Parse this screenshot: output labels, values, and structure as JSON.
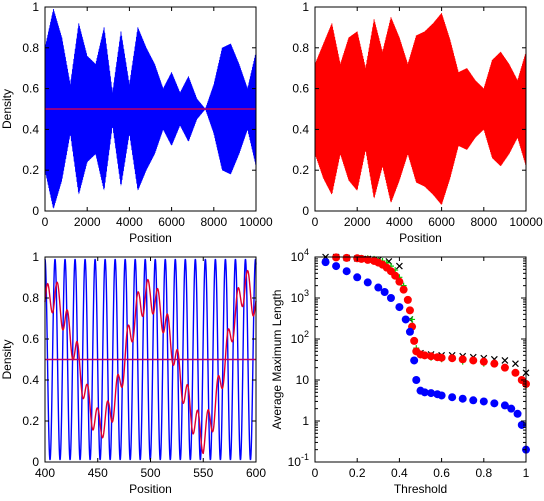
{
  "chart_data": [
    {
      "panel": "top-left",
      "type": "area",
      "xlabel": "Position",
      "ylabel": "Density",
      "xlim": [
        0,
        10000
      ],
      "ylim": [
        0,
        1
      ],
      "xticks": [
        "0",
        "2000",
        "4000",
        "6000",
        "8000",
        "10000"
      ],
      "yticks": [
        "0",
        "0.2",
        "0.4",
        "0.6",
        "0.8",
        "1"
      ],
      "colors": {
        "fill": "#0000ff",
        "line": "#c00060"
      },
      "series": [
        {
          "style": "oscillation-envelope",
          "x": [
            0,
            400,
            800,
            1200,
            1600,
            2000,
            2400,
            2800,
            3200,
            3600,
            4000,
            4400,
            4800,
            5200,
            5600,
            6000,
            6400,
            6800,
            7200,
            7600,
            8000,
            8400,
            8800,
            9200,
            9600,
            10000
          ],
          "upper": [
            0.8,
            0.99,
            0.85,
            0.62,
            0.92,
            0.76,
            0.72,
            0.9,
            0.58,
            0.88,
            0.62,
            0.9,
            0.8,
            0.72,
            0.6,
            0.68,
            0.58,
            0.66,
            0.55,
            0.5,
            0.62,
            0.8,
            0.82,
            0.72,
            0.6,
            0.78
          ],
          "lower": [
            0.2,
            0.01,
            0.15,
            0.38,
            0.08,
            0.24,
            0.28,
            0.1,
            0.42,
            0.12,
            0.38,
            0.1,
            0.2,
            0.28,
            0.4,
            0.32,
            0.42,
            0.34,
            0.45,
            0.5,
            0.38,
            0.2,
            0.18,
            0.28,
            0.4,
            0.22
          ]
        },
        {
          "style": "hline",
          "y": 0.5
        }
      ]
    },
    {
      "panel": "top-right",
      "type": "area",
      "xlabel": "Position",
      "ylabel": "",
      "xlim": [
        0,
        10000
      ],
      "ylim": [
        0,
        1
      ],
      "xticks": [
        "0",
        "2000",
        "4000",
        "6000",
        "8000",
        "10000"
      ],
      "yticks": [
        "0",
        "0.2",
        "0.4",
        "0.6",
        "0.8",
        "1"
      ],
      "colors": {
        "fill": "#ff0000"
      },
      "series": [
        {
          "style": "oscillation-envelope",
          "x": [
            0,
            400,
            800,
            1200,
            1600,
            2000,
            2400,
            2800,
            3200,
            3600,
            4000,
            4400,
            4800,
            5200,
            5600,
            6000,
            6400,
            6800,
            7200,
            7600,
            8000,
            8400,
            8800,
            9200,
            9600,
            10000
          ],
          "upper": [
            0.72,
            0.82,
            0.92,
            0.72,
            0.85,
            0.88,
            0.7,
            0.94,
            0.78,
            0.95,
            0.85,
            0.72,
            0.86,
            0.88,
            0.92,
            0.97,
            0.84,
            0.68,
            0.7,
            0.64,
            0.6,
            0.74,
            0.78,
            0.72,
            0.64,
            0.78
          ],
          "lower": [
            0.28,
            0.16,
            0.08,
            0.28,
            0.15,
            0.1,
            0.3,
            0.06,
            0.22,
            0.04,
            0.15,
            0.28,
            0.14,
            0.12,
            0.08,
            0.03,
            0.16,
            0.32,
            0.3,
            0.36,
            0.4,
            0.26,
            0.22,
            0.28,
            0.36,
            0.22
          ]
        }
      ]
    },
    {
      "panel": "bottom-left",
      "type": "line",
      "xlabel": "Position",
      "ylabel": "Density",
      "xlim": [
        400,
        600
      ],
      "ylim": [
        0,
        1
      ],
      "xticks": [
        "400",
        "450",
        "500",
        "550",
        "600"
      ],
      "yticks": [
        "0",
        "0.2",
        "0.4",
        "0.6",
        "0.8",
        "1"
      ],
      "colors": {
        "blue": "#0000ff",
        "red": "#e00030",
        "hline": "#c00060"
      },
      "series": [
        {
          "style": "cosine",
          "color": "blue",
          "period": 9.5,
          "phase": 0.0,
          "min": 0.01,
          "max": 0.99
        },
        {
          "style": "smooth",
          "color": "red",
          "x": [
            400,
            410,
            420,
            430,
            440,
            450,
            460,
            470,
            480,
            490,
            500,
            510,
            520,
            530,
            540,
            550,
            560,
            570,
            580,
            590,
            600
          ],
          "y": [
            0.78,
            0.82,
            0.68,
            0.52,
            0.3,
            0.18,
            0.22,
            0.36,
            0.62,
            0.78,
            0.82,
            0.74,
            0.58,
            0.38,
            0.22,
            0.12,
            0.24,
            0.48,
            0.72,
            0.88,
            0.76
          ],
          "ripple": 0.08
        },
        {
          "style": "hline",
          "color": "hline",
          "y": 0.5
        }
      ]
    },
    {
      "panel": "bottom-right",
      "type": "scatter",
      "xlabel": "Threshold",
      "ylabel": "Average Maximum Length",
      "xlim": [
        0,
        1
      ],
      "ylog": true,
      "ylim": [
        0.1,
        10000
      ],
      "xticks": [
        "0",
        "0.2",
        "0.4",
        "0.6",
        "0.8",
        "1"
      ],
      "yticks_log": [
        {
          "exp": -1,
          "label": "10",
          "sup": "-1"
        },
        {
          "exp": 0,
          "label": "1",
          "sup": ""
        },
        {
          "exp": 1,
          "label": "10",
          "sup": ""
        },
        {
          "exp": 2,
          "label": "10",
          "sup": "2"
        },
        {
          "exp": 3,
          "label": "10",
          "sup": "3"
        },
        {
          "exp": 4,
          "label": "10",
          "sup": "4"
        }
      ],
      "series": [
        {
          "marker": "cross",
          "color": "#000000",
          "x": [
            0.05,
            0.1,
            0.15,
            0.2,
            0.25,
            0.3,
            0.35,
            0.4,
            0.45,
            0.5,
            0.55,
            0.6,
            0.65,
            0.7,
            0.75,
            0.8,
            0.85,
            0.9,
            0.95,
            1.0
          ],
          "y": [
            10000,
            10000,
            9500,
            9200,
            9000,
            8500,
            7800,
            6000,
            300,
            45,
            42,
            40,
            40,
            38,
            36,
            34,
            32,
            30,
            25,
            15
          ]
        },
        {
          "marker": "plus",
          "color": "#00cc00",
          "x": [
            0.22,
            0.25,
            0.28,
            0.3,
            0.32,
            0.34,
            0.36,
            0.38,
            0.4,
            0.42,
            0.44,
            0.46,
            0.48,
            0.5,
            0.55,
            0.6,
            0.7,
            0.8,
            0.9,
            0.95,
            0.98,
            1.0
          ],
          "y": [
            9500,
            9300,
            9000,
            8600,
            8000,
            7200,
            6000,
            4800,
            3200,
            2000,
            900,
            300,
            60,
            40,
            35,
            32,
            28,
            25,
            20,
            15,
            10,
            7
          ]
        },
        {
          "marker": "circle",
          "color": "#ff0000",
          "x": [
            0.1,
            0.15,
            0.2,
            0.22,
            0.25,
            0.28,
            0.3,
            0.32,
            0.34,
            0.36,
            0.38,
            0.4,
            0.42,
            0.44,
            0.45,
            0.46,
            0.47,
            0.48,
            0.5,
            0.52,
            0.55,
            0.58,
            0.6,
            0.65,
            0.7,
            0.75,
            0.8,
            0.85,
            0.9,
            0.95,
            0.98,
            1.0
          ],
          "y": [
            9800,
            9500,
            9300,
            9000,
            8500,
            8000,
            7300,
            6500,
            5500,
            4500,
            3500,
            2500,
            1600,
            900,
            500,
            200,
            90,
            50,
            42,
            40,
            38,
            36,
            35,
            34,
            32,
            30,
            28,
            25,
            20,
            15,
            10,
            8
          ]
        },
        {
          "marker": "circle",
          "color": "#0000ff",
          "x": [
            0.05,
            0.1,
            0.15,
            0.2,
            0.25,
            0.3,
            0.33,
            0.36,
            0.4,
            0.43,
            0.45,
            0.47,
            0.48,
            0.5,
            0.52,
            0.55,
            0.58,
            0.6,
            0.65,
            0.7,
            0.75,
            0.8,
            0.85,
            0.9,
            0.93,
            0.96,
            0.98,
            1.0
          ],
          "y": [
            7500,
            6000,
            4500,
            3200,
            2400,
            1800,
            1400,
            1000,
            600,
            300,
            150,
            30,
            10,
            5.5,
            5,
            4.8,
            4.5,
            4.2,
            3.8,
            3.5,
            3.2,
            3.0,
            2.7,
            2.4,
            2.0,
            1.5,
            0.8,
            0.2
          ]
        }
      ]
    }
  ]
}
